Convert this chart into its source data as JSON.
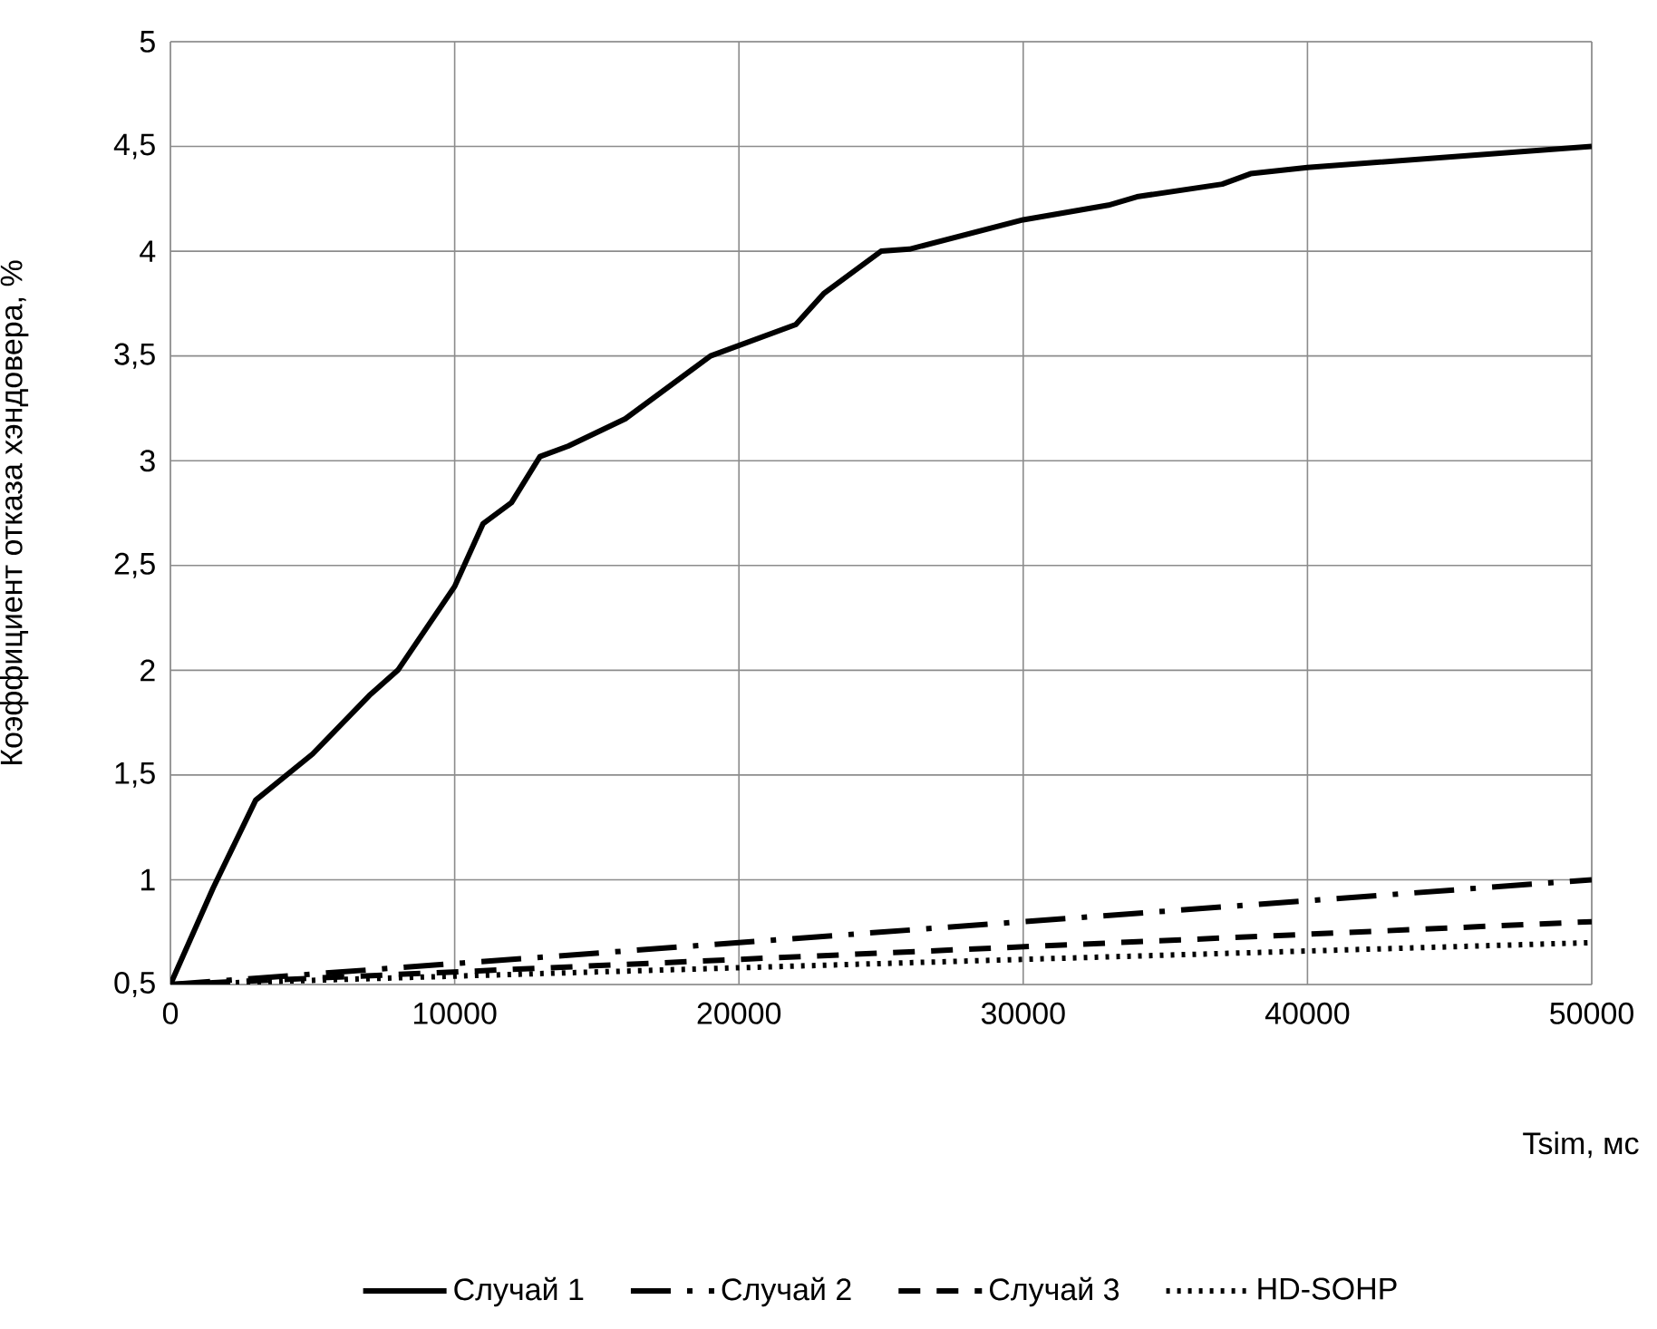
{
  "chart_data": {
    "type": "line",
    "xlabel": "Tsim, мс",
    "ylabel": "Коэффициент отказа хэндовера, %",
    "xlim": [
      0,
      50000
    ],
    "xticks": [
      0,
      10000,
      20000,
      30000,
      40000,
      50000
    ],
    "ylim": [
      0.5,
      5
    ],
    "yticks": [
      {
        "value": 0.5,
        "label": "0,5"
      },
      1,
      {
        "value": 1.5,
        "label": "1,5"
      },
      2,
      {
        "value": 2.5,
        "label": "2,5"
      },
      3,
      {
        "value": 3.5,
        "label": "3,5"
      },
      4,
      {
        "value": 4.5,
        "label": "4,5"
      },
      5
    ],
    "grid": true,
    "legend": "bottom",
    "series": [
      {
        "name": "Случай 1",
        "color": "#000000",
        "line_style": "solid",
        "x": [
          0,
          1500,
          3000,
          5000,
          7000,
          8000,
          10000,
          11000,
          12000,
          13000,
          14000,
          16000,
          19000,
          22000,
          23000,
          25000,
          26000,
          28000,
          30000,
          33000,
          34000,
          37000,
          38000,
          40000,
          50000
        ],
        "values": [
          0.5,
          0.96,
          1.38,
          1.6,
          1.88,
          2.0,
          2.4,
          2.7,
          2.8,
          3.02,
          3.07,
          3.2,
          3.5,
          3.65,
          3.8,
          4.0,
          4.01,
          4.08,
          4.15,
          4.22,
          4.26,
          4.32,
          4.37,
          4.4,
          4.5
        ]
      },
      {
        "name": "Случай 2",
        "color": "#000000",
        "line_style": "dashdot",
        "x": [
          0,
          10000,
          20000,
          30000,
          40000,
          50000
        ],
        "values": [
          0.5,
          0.6,
          0.7,
          0.8,
          0.9,
          1.0
        ]
      },
      {
        "name": "Случай 3",
        "color": "#000000",
        "line_style": "dashed",
        "x": [
          0,
          10000,
          20000,
          30000,
          40000,
          50000
        ],
        "values": [
          0.5,
          0.56,
          0.62,
          0.68,
          0.74,
          0.8
        ]
      },
      {
        "name": "HD-SOHP",
        "color": "#000000",
        "line_style": "dotted",
        "x": [
          0,
          10000,
          20000,
          30000,
          40000,
          50000
        ],
        "values": [
          0.5,
          0.54,
          0.58,
          0.62,
          0.66,
          0.7
        ]
      }
    ]
  }
}
